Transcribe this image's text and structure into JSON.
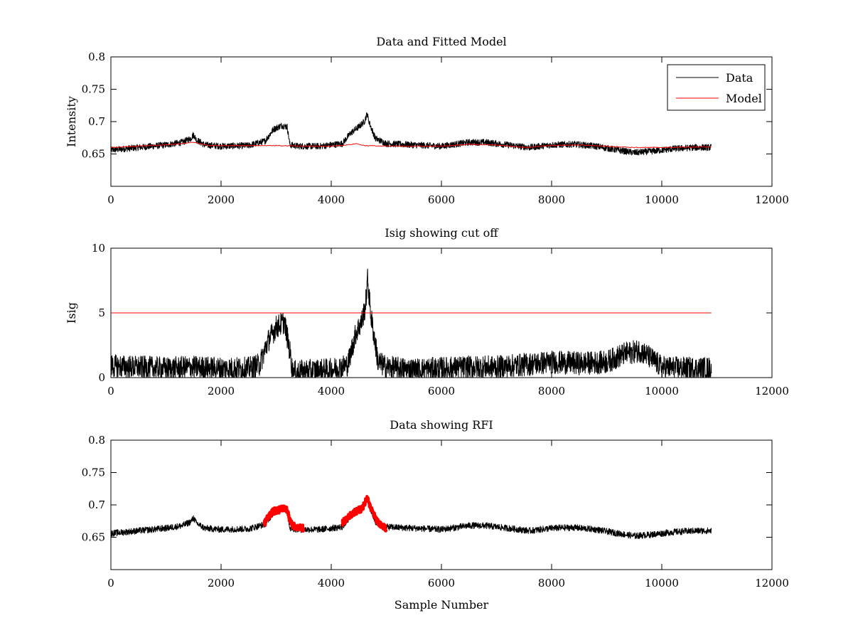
{
  "chart_data": [
    {
      "type": "line",
      "title": "Data and Fitted Model",
      "xlabel": "",
      "ylabel": "Intensity",
      "xlim": [
        0,
        12000
      ],
      "ylim": [
        0.6,
        0.8
      ],
      "xticks": [
        0,
        2000,
        4000,
        6000,
        8000,
        10000,
        12000
      ],
      "xtick_labels": [
        "0",
        "2000",
        "4000",
        "6000",
        "8000",
        "10000",
        "12000"
      ],
      "yticks": [
        0.65,
        0.7,
        0.75,
        0.8
      ],
      "ytick_labels": [
        "0.65",
        "0.7",
        "0.75",
        "0.8"
      ],
      "grid": false,
      "legend": "top-right",
      "series": [
        {
          "name": "Data",
          "color": "#000000",
          "x": [
            0,
            500,
            1000,
            1300,
            1450,
            1500,
            1550,
            1700,
            2000,
            2500,
            2800,
            2950,
            3100,
            3200,
            3250,
            3400,
            3800,
            4200,
            4350,
            4500,
            4600,
            4650,
            4700,
            4800,
            5000,
            5500,
            6000,
            6500,
            6800,
            7200,
            7600,
            8000,
            8400,
            8800,
            9200,
            9500,
            9800,
            10200,
            10600,
            10900
          ],
          "y": [
            0.656,
            0.66,
            0.664,
            0.668,
            0.674,
            0.68,
            0.672,
            0.664,
            0.662,
            0.663,
            0.67,
            0.688,
            0.694,
            0.692,
            0.664,
            0.662,
            0.662,
            0.666,
            0.682,
            0.692,
            0.7,
            0.712,
            0.696,
            0.674,
            0.666,
            0.664,
            0.662,
            0.668,
            0.668,
            0.664,
            0.66,
            0.664,
            0.665,
            0.662,
            0.656,
            0.652,
            0.654,
            0.658,
            0.66,
            0.66
          ]
        },
        {
          "name": "Model",
          "color": "#ff0000",
          "x": [
            0,
            500,
            1000,
            1300,
            1500,
            1600,
            1800,
            2500,
            3000,
            3500,
            4000,
            4300,
            4450,
            4600,
            5000,
            6000,
            6500,
            7000,
            7500,
            8000,
            8500,
            9000,
            9500,
            10000,
            10900
          ],
          "y": [
            0.66,
            0.662,
            0.664,
            0.666,
            0.668,
            0.666,
            0.663,
            0.663,
            0.663,
            0.662,
            0.662,
            0.664,
            0.666,
            0.663,
            0.662,
            0.662,
            0.665,
            0.664,
            0.66,
            0.663,
            0.664,
            0.662,
            0.66,
            0.66,
            0.661
          ]
        }
      ]
    },
    {
      "type": "line",
      "title": "Isig showing cut off",
      "xlabel": "",
      "ylabel": "Isig",
      "xlim": [
        0,
        12000
      ],
      "ylim": [
        0,
        10
      ],
      "xticks": [
        0,
        2000,
        4000,
        6000,
        8000,
        10000,
        12000
      ],
      "xtick_labels": [
        "0",
        "2000",
        "4000",
        "6000",
        "8000",
        "10000",
        "12000"
      ],
      "yticks": [
        0,
        5,
        10
      ],
      "ytick_labels": [
        "0",
        "5",
        "10"
      ],
      "grid": false,
      "series": [
        {
          "color": "#000000",
          "x": [
            0,
            500,
            1000,
            1500,
            2000,
            2500,
            2700,
            2850,
            3000,
            3150,
            3250,
            3300,
            3500,
            4000,
            4300,
            4450,
            4550,
            4620,
            4660,
            4720,
            4850,
            5000,
            5500,
            6000,
            6500,
            7000,
            7500,
            8000,
            8500,
            9000,
            9300,
            9600,
            9800,
            10000,
            10500,
            10900
          ],
          "y": [
            0.9,
            0.8,
            0.7,
            0.8,
            0.7,
            0.7,
            1.0,
            2.8,
            3.9,
            4.3,
            2.0,
            0.4,
            0.5,
            0.6,
            1.0,
            3.5,
            4.3,
            5.5,
            7.6,
            4.8,
            1.2,
            0.8,
            0.6,
            0.7,
            0.8,
            0.8,
            1.0,
            1.2,
            1.1,
            1.2,
            1.8,
            2.1,
            1.5,
            0.8,
            0.7,
            0.7
          ]
        },
        {
          "color": "#ff0000",
          "x": [
            0,
            10900
          ],
          "y": [
            5,
            5
          ]
        }
      ]
    },
    {
      "type": "line",
      "title": "Data showing RFI",
      "xlabel": "Sample Number",
      "ylabel": "",
      "xlim": [
        0,
        12000
      ],
      "ylim": [
        0.6,
        0.8
      ],
      "xticks": [
        0,
        2000,
        4000,
        6000,
        8000,
        10000,
        12000
      ],
      "xtick_labels": [
        "0",
        "2000",
        "4000",
        "6000",
        "8000",
        "10000",
        "12000"
      ],
      "yticks": [
        0.65,
        0.7,
        0.75,
        0.8
      ],
      "ytick_labels": [
        "0.65",
        "0.7",
        "0.75",
        "0.8"
      ],
      "grid": false,
      "series": [
        {
          "color": "#000000",
          "x": [
            0,
            500,
            1000,
            1300,
            1450,
            1500,
            1550,
            1700,
            2000,
            2500,
            2800,
            2950,
            3100,
            3200,
            3250,
            3400,
            3800,
            4200,
            4350,
            4500,
            4600,
            4650,
            4700,
            4800,
            5000,
            5500,
            6000,
            6500,
            6800,
            7200,
            7600,
            8000,
            8400,
            8800,
            9200,
            9500,
            9800,
            10200,
            10600,
            10900
          ],
          "y": [
            0.656,
            0.66,
            0.664,
            0.668,
            0.674,
            0.68,
            0.672,
            0.664,
            0.662,
            0.663,
            0.67,
            0.688,
            0.694,
            0.692,
            0.664,
            0.662,
            0.662,
            0.666,
            0.682,
            0.692,
            0.7,
            0.712,
            0.696,
            0.674,
            0.666,
            0.664,
            0.662,
            0.668,
            0.668,
            0.664,
            0.66,
            0.664,
            0.665,
            0.662,
            0.656,
            0.652,
            0.654,
            0.658,
            0.66,
            0.66
          ]
        },
        {
          "color": "#ff0000",
          "x": [
            2780,
            2850,
            2950,
            3050,
            3100,
            3150,
            3200,
            3250,
            3300,
            3400,
            3500
          ],
          "y": [
            0.67,
            0.682,
            0.69,
            0.692,
            0.696,
            0.694,
            0.692,
            0.675,
            0.668,
            0.665,
            0.664
          ]
        },
        {
          "color": "#ff0000",
          "x": [
            4200,
            4300,
            4400,
            4500,
            4550,
            4600,
            4650,
            4700,
            4800,
            4900,
            5000
          ],
          "y": [
            0.672,
            0.68,
            0.688,
            0.692,
            0.694,
            0.7,
            0.714,
            0.698,
            0.68,
            0.668,
            0.664
          ]
        }
      ]
    }
  ]
}
